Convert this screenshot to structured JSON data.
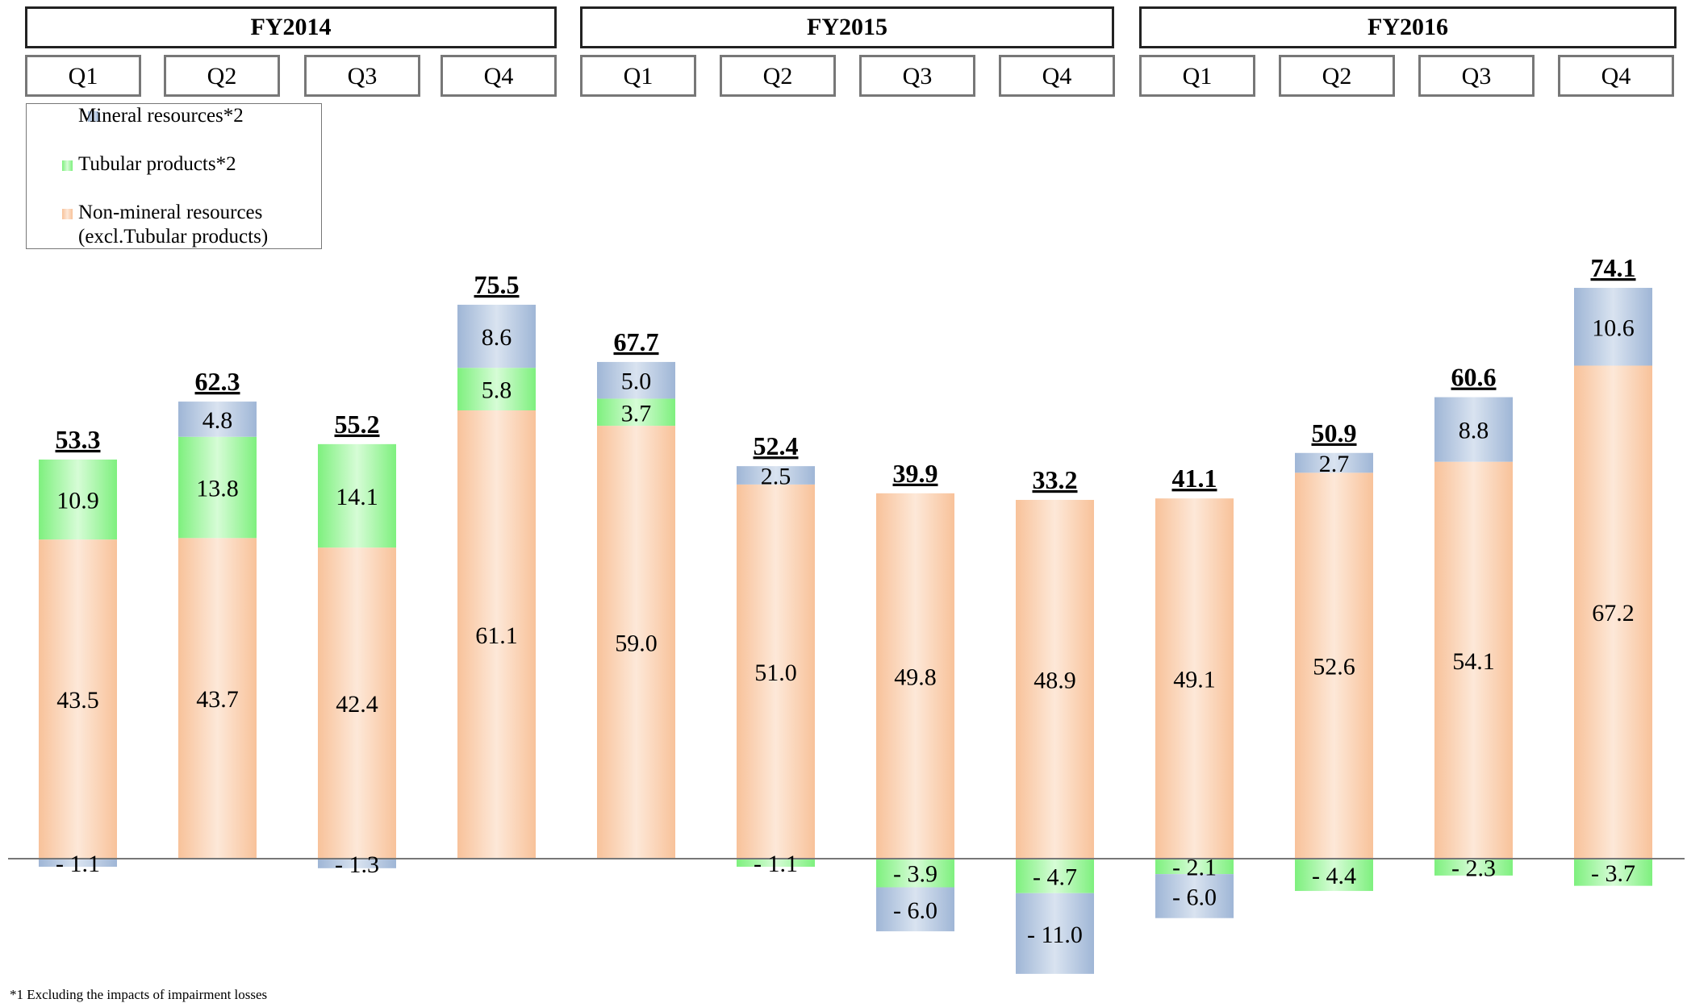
{
  "chart_data": {
    "type": "bar",
    "stacked": true,
    "fiscal_years": [
      "FY2014",
      "FY2015",
      "FY2016"
    ],
    "categories": [
      "Q1",
      "Q2",
      "Q3",
      "Q4",
      "Q1",
      "Q2",
      "Q3",
      "Q4",
      "Q1",
      "Q2",
      "Q3",
      "Q4"
    ],
    "category_fiscal_year": [
      "FY2014",
      "FY2014",
      "FY2014",
      "FY2014",
      "FY2015",
      "FY2015",
      "FY2015",
      "FY2015",
      "FY2016",
      "FY2016",
      "FY2016",
      "FY2016"
    ],
    "totals": [
      "53.3",
      "62.3",
      "55.2",
      "75.5",
      "67.7",
      "52.4",
      "39.9",
      "33.2",
      "41.1",
      "50.9",
      "60.6",
      "74.1"
    ],
    "series": [
      {
        "name": "Non-mineral resources (excl.Tubular products)",
        "color": "#f9c9a1",
        "values": [
          43.5,
          43.7,
          42.4,
          61.1,
          59.0,
          51.0,
          49.8,
          48.9,
          49.1,
          52.6,
          54.1,
          67.2
        ],
        "labels": [
          "43.5",
          "43.7",
          "42.4",
          "61.1",
          "59.0",
          "51.0",
          "49.8",
          "48.9",
          "49.1",
          "52.6",
          "54.1",
          "67.2"
        ]
      },
      {
        "name": "Tubular products*2",
        "color": "#8ff48f",
        "values": [
          10.9,
          13.8,
          14.1,
          5.8,
          3.7,
          -1.1,
          -3.9,
          -4.7,
          -2.1,
          -4.4,
          -2.3,
          -3.7
        ],
        "labels": [
          "10.9",
          "13.8",
          "14.1",
          "5.8",
          "3.7",
          "- 1.1",
          "- 3.9",
          "- 4.7",
          "- 2.1",
          "- 4.4",
          "- 2.3",
          "- 3.7"
        ]
      },
      {
        "name": "Mineral resources*2",
        "color": "#a9bfdc",
        "values": [
          -1.1,
          4.8,
          -1.3,
          8.6,
          5.0,
          2.5,
          -6.0,
          -11.0,
          -6.0,
          2.7,
          8.8,
          10.6
        ],
        "labels": [
          "- 1.1",
          "4.8",
          "- 1.3",
          "8.6",
          "5.0",
          "2.5",
          "- 6.0",
          "- 11.0",
          "- 6.0",
          "2.7",
          "8.8",
          "10.6"
        ]
      }
    ],
    "legend": {
      "position": "top-left",
      "items": [
        {
          "label": "Mineral resources*2",
          "color": "#a9bfdc"
        },
        {
          "label": "Tubular products*2",
          "color": "#8ff48f"
        },
        {
          "label_line1": "Non-mineral resources",
          "label_line2": "(excl.Tubular products)",
          "color": "#f9c9a1"
        }
      ]
    },
    "ylim": [
      -15,
      90
    ],
    "grid": false,
    "footnote": "*1 Excluding the impacts of impairment losses"
  }
}
